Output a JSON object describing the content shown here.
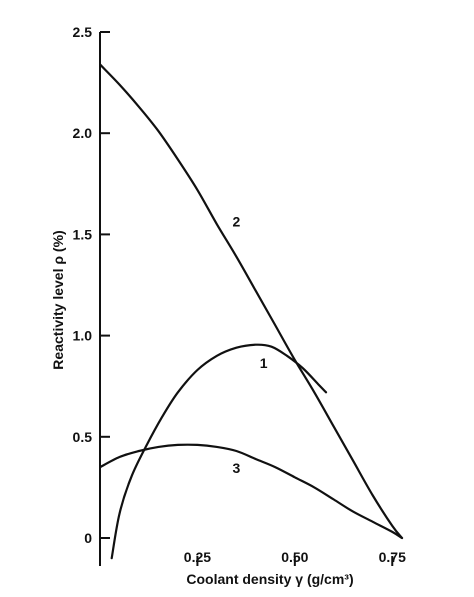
{
  "chart_data": {
    "type": "line",
    "xlabel": "Coolant density γ (g/cm³)",
    "ylabel": "Reactivity level ρ (%)",
    "xlim": [
      0,
      0.78
    ],
    "ylim": [
      0,
      2.5
    ],
    "x_ticks": [
      "0.25",
      "0.50",
      "0.75"
    ],
    "x_tick_values": [
      0.25,
      0.5,
      0.75
    ],
    "y_ticks": [
      "0",
      "0.5",
      "1.0",
      "1.5",
      "2.0",
      "2.5"
    ],
    "y_tick_values": [
      0,
      0.5,
      1.0,
      1.5,
      2.0,
      2.5
    ],
    "grid": false,
    "series": [
      {
        "name": "1",
        "label_at": [
          0.42,
          0.84
        ],
        "points": [
          [
            0.03,
            -0.1
          ],
          [
            0.05,
            0.12
          ],
          [
            0.08,
            0.3
          ],
          [
            0.12,
            0.46
          ],
          [
            0.16,
            0.6
          ],
          [
            0.2,
            0.72
          ],
          [
            0.25,
            0.83
          ],
          [
            0.3,
            0.9
          ],
          [
            0.35,
            0.94
          ],
          [
            0.4,
            0.955
          ],
          [
            0.44,
            0.945
          ],
          [
            0.48,
            0.9
          ],
          [
            0.52,
            0.84
          ],
          [
            0.56,
            0.76
          ],
          [
            0.58,
            0.72
          ]
        ]
      },
      {
        "name": "2",
        "label_at": [
          0.35,
          1.54
        ],
        "points": [
          [
            0,
            2.34
          ],
          [
            0.05,
            2.24
          ],
          [
            0.1,
            2.13
          ],
          [
            0.15,
            2.01
          ],
          [
            0.2,
            1.87
          ],
          [
            0.25,
            1.72
          ],
          [
            0.3,
            1.55
          ],
          [
            0.35,
            1.39
          ],
          [
            0.4,
            1.22
          ],
          [
            0.45,
            1.05
          ],
          [
            0.5,
            0.88
          ],
          [
            0.55,
            0.72
          ],
          [
            0.6,
            0.55
          ],
          [
            0.65,
            0.38
          ],
          [
            0.7,
            0.21
          ],
          [
            0.75,
            0.06
          ],
          [
            0.775,
            0
          ]
        ]
      },
      {
        "name": "3",
        "label_at": [
          0.35,
          0.32
        ],
        "points": [
          [
            0,
            0.35
          ],
          [
            0.05,
            0.4
          ],
          [
            0.1,
            0.43
          ],
          [
            0.15,
            0.45
          ],
          [
            0.2,
            0.46
          ],
          [
            0.25,
            0.46
          ],
          [
            0.3,
            0.45
          ],
          [
            0.35,
            0.43
          ],
          [
            0.4,
            0.39
          ],
          [
            0.45,
            0.35
          ],
          [
            0.5,
            0.3
          ],
          [
            0.55,
            0.25
          ],
          [
            0.6,
            0.19
          ],
          [
            0.65,
            0.13
          ],
          [
            0.7,
            0.08
          ],
          [
            0.75,
            0.03
          ],
          [
            0.775,
            0
          ]
        ]
      }
    ]
  }
}
